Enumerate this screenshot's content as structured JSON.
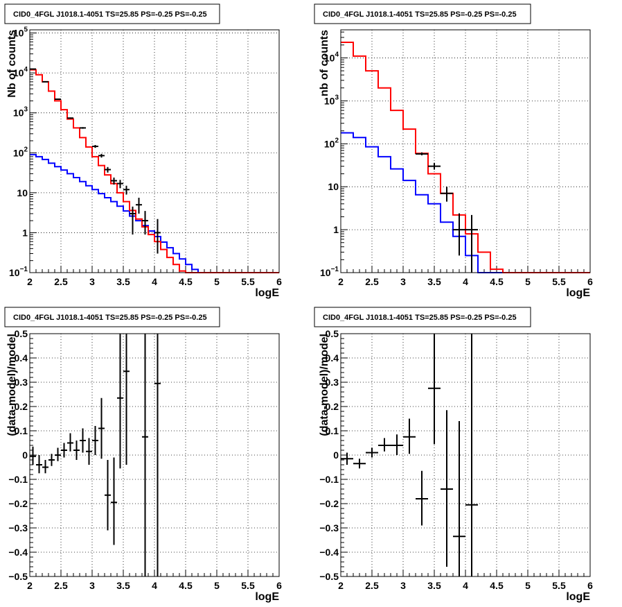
{
  "chart_data": [
    {
      "id": "p1",
      "type": "line",
      "title": "CID0_4FGL J1018.1-4051 TS=25.85 PS=-0.25 PS=-0.25",
      "xlabel": "logE",
      "ylabel": "Nb of counts",
      "xlim": [
        2,
        6
      ],
      "ylim": [
        0.1,
        120000
      ],
      "yscale": "log",
      "grid": true,
      "xticks": [
        {
          "v": 2,
          "label": "2"
        },
        {
          "v": 2.5,
          "label": "2.5"
        },
        {
          "v": 3,
          "label": "3"
        },
        {
          "v": 3.5,
          "label": "3.5"
        },
        {
          "v": 4,
          "label": "4"
        },
        {
          "v": 4.5,
          "label": "4.5"
        },
        {
          "v": 5,
          "label": "5"
        },
        {
          "v": 5.5,
          "label": "5.5"
        },
        {
          "v": 6,
          "label": "6"
        }
      ],
      "yticks": [
        {
          "v": 0.1,
          "base": "10",
          "exp": "−1"
        },
        {
          "v": 1,
          "label": "1"
        },
        {
          "v": 10,
          "label": "10"
        },
        {
          "v": 100,
          "base": "10",
          "exp": "2"
        },
        {
          "v": 1000,
          "base": "10",
          "exp": "3"
        },
        {
          "v": 10000,
          "base": "10",
          "exp": "4"
        },
        {
          "v": 100000,
          "base": "10",
          "exp": "5"
        }
      ],
      "series": [
        {
          "name": "",
          "kind": "step",
          "color": "#0000ff",
          "bin_width": 0.1,
          "x_start": 2.0,
          "values": [
            90,
            80,
            68,
            55,
            45,
            37,
            30,
            24,
            19,
            15,
            12,
            9.5,
            7.5,
            6,
            4.6,
            3.5,
            2.6,
            2,
            1.5,
            1.1,
            0.8,
            0.58,
            0.42,
            0.3,
            0.22,
            0.16,
            0.12,
            0.1,
            0.1,
            0.1,
            0.1,
            0.1,
            0.1,
            0.1,
            0.1,
            0.1,
            0.1,
            0.1,
            0.1,
            0.1
          ]
        },
        {
          "name": "",
          "kind": "step",
          "color": "#ff0000",
          "bin_width": 0.1,
          "x_start": 2.0,
          "values": [
            12000,
            9000,
            6000,
            3500,
            2000,
            1200,
            700,
            420,
            240,
            140,
            80,
            48,
            28,
            17,
            10,
            6,
            3.6,
            2.2,
            1.4,
            0.9,
            0.6,
            0.38,
            0.24,
            0.16,
            0.11,
            0.1,
            0.1,
            0.1,
            0.1,
            0.1,
            0.1,
            0.1,
            0.1,
            0.1,
            0.1,
            0.1,
            0.1,
            0.1,
            0.1,
            0.1
          ]
        },
        {
          "name": "",
          "kind": "errorbar",
          "color": "#000000",
          "xerr": 0.05,
          "points": [
            {
              "x": 2.05,
              "y": 12500,
              "lo": 12300,
              "hi": 12700
            },
            {
              "x": 2.25,
              "y": 6000,
              "lo": 5900,
              "hi": 6100
            },
            {
              "x": 2.45,
              "y": 2200,
              "lo": 2150,
              "hi": 2250
            },
            {
              "x": 2.65,
              "y": 740,
              "lo": 715,
              "hi": 765
            },
            {
              "x": 2.85,
              "y": 420,
              "lo": 400,
              "hi": 440
            },
            {
              "x": 3.05,
              "y": 145,
              "lo": 133,
              "hi": 157
            },
            {
              "x": 3.15,
              "y": 85,
              "lo": 76,
              "hi": 94
            },
            {
              "x": 3.25,
              "y": 38,
              "lo": 32,
              "hi": 44
            },
            {
              "x": 3.35,
              "y": 20,
              "lo": 16,
              "hi": 24
            },
            {
              "x": 3.45,
              "y": 17,
              "lo": 13,
              "hi": 21
            },
            {
              "x": 3.55,
              "y": 12,
              "lo": 9,
              "hi": 15
            },
            {
              "x": 3.65,
              "y": 3,
              "lo": 0.9,
              "hi": 4.5
            },
            {
              "x": 3.75,
              "y": 5,
              "lo": 3,
              "hi": 7.5
            },
            {
              "x": 3.85,
              "y": 2,
              "lo": 0.9,
              "hi": 3.5
            },
            {
              "x": 4.05,
              "y": 1,
              "lo": 0.3,
              "hi": 2.2
            }
          ]
        }
      ]
    },
    {
      "id": "p2",
      "type": "line",
      "title": "CID0_4FGL J1018.1-4051 TS=25.85 PS=-0.25 PS=-0.25",
      "xlabel": "logE",
      "ylabel": "nb of counts",
      "xlim": [
        2,
        6
      ],
      "ylim": [
        0.1,
        45000
      ],
      "yscale": "log",
      "grid": true,
      "xticks": [
        {
          "v": 2,
          "label": "2"
        },
        {
          "v": 2.5,
          "label": "2.5"
        },
        {
          "v": 3,
          "label": "3"
        },
        {
          "v": 3.5,
          "label": "3.5"
        },
        {
          "v": 4,
          "label": "4"
        },
        {
          "v": 4.5,
          "label": "4.5"
        },
        {
          "v": 5,
          "label": "5"
        },
        {
          "v": 5.5,
          "label": "5.5"
        },
        {
          "v": 6,
          "label": "6"
        }
      ],
      "yticks": [
        {
          "v": 0.1,
          "base": "10",
          "exp": "−1"
        },
        {
          "v": 1,
          "label": "1"
        },
        {
          "v": 10,
          "label": "10"
        },
        {
          "v": 100,
          "base": "10",
          "exp": "2"
        },
        {
          "v": 1000,
          "base": "10",
          "exp": "3"
        },
        {
          "v": 10000,
          "base": "10",
          "exp": "4"
        }
      ],
      "series": [
        {
          "name": "",
          "kind": "step",
          "color": "#0000ff",
          "bin_width": 0.2,
          "x_start": 2.0,
          "values": [
            180,
            140,
            85,
            50,
            26,
            14,
            6.5,
            4,
            1.5,
            0.7,
            0.25,
            0.1,
            0.1,
            0.1,
            0.1,
            0.1,
            0.1,
            0.1,
            0.1,
            0.1
          ]
        },
        {
          "name": "",
          "kind": "step",
          "color": "#ff0000",
          "bin_width": 0.2,
          "x_start": 2.0,
          "values": [
            23000,
            11000,
            5000,
            2000,
            600,
            220,
            60,
            20,
            7,
            2.2,
            0.8,
            0.3,
            0.12,
            0.1,
            0.1,
            0.1,
            0.1,
            0.1,
            0.1,
            0.1
          ]
        },
        {
          "name": "",
          "kind": "errorbar",
          "color": "#000000",
          "xerr": 0.1,
          "points": [
            {
              "x": 3.3,
              "y": 58,
              "lo": 54,
              "hi": 63
            },
            {
              "x": 3.5,
              "y": 30,
              "lo": 25,
              "hi": 36
            },
            {
              "x": 3.7,
              "y": 7,
              "lo": 4.5,
              "hi": 10
            },
            {
              "x": 3.9,
              "y": 1,
              "lo": 0.25,
              "hi": 2.4
            },
            {
              "x": 4.1,
              "y": 1,
              "lo": 0.1,
              "hi": 2.2
            }
          ]
        }
      ]
    },
    {
      "id": "p3",
      "type": "scatter",
      "title": "CID0_4FGL J1018.1-4051 TS=25.85 PS=-0.25 PS=-0.25",
      "xlabel": "logE",
      "ylabel": "(data-model)/model",
      "xlim": [
        2,
        6
      ],
      "ylim": [
        -0.5,
        0.5
      ],
      "yscale": "linear",
      "grid": true,
      "xticks": [
        {
          "v": 2,
          "label": "2"
        },
        {
          "v": 2.5,
          "label": "2.5"
        },
        {
          "v": 3,
          "label": "3"
        },
        {
          "v": 3.5,
          "label": "3.5"
        },
        {
          "v": 4,
          "label": "4"
        },
        {
          "v": 4.5,
          "label": "4.5"
        },
        {
          "v": 5,
          "label": "5"
        },
        {
          "v": 5.5,
          "label": "5.5"
        },
        {
          "v": 6,
          "label": "6"
        }
      ],
      "yticks": [
        {
          "v": -0.5,
          "label": "−0.5"
        },
        {
          "v": -0.4,
          "label": "−0.4"
        },
        {
          "v": -0.3,
          "label": "−0.3"
        },
        {
          "v": -0.2,
          "label": "−0.2"
        },
        {
          "v": -0.1,
          "label": "−0.1"
        },
        {
          "v": 0,
          "label": "0"
        },
        {
          "v": 0.1,
          "label": "0.1"
        },
        {
          "v": 0.2,
          "label": "0.2"
        },
        {
          "v": 0.3,
          "label": "0.3"
        },
        {
          "v": 0.4,
          "label": "0.4"
        },
        {
          "v": 0.5,
          "label": "0.5"
        }
      ],
      "series": [
        {
          "name": "",
          "kind": "errorbar",
          "color": "#000000",
          "xerr": 0.05,
          "points": [
            {
              "x": 2.05,
              "y": -0.005,
              "lo": -0.04,
              "hi": 0.035
            },
            {
              "x": 2.15,
              "y": -0.04,
              "lo": -0.075,
              "hi": 0.0
            },
            {
              "x": 2.25,
              "y": -0.05,
              "lo": -0.075,
              "hi": -0.02
            },
            {
              "x": 2.35,
              "y": -0.02,
              "lo": -0.045,
              "hi": 0.005
            },
            {
              "x": 2.45,
              "y": 0.0,
              "lo": -0.025,
              "hi": 0.03
            },
            {
              "x": 2.55,
              "y": 0.02,
              "lo": -0.01,
              "hi": 0.05
            },
            {
              "x": 2.65,
              "y": 0.05,
              "lo": 0.015,
              "hi": 0.09
            },
            {
              "x": 2.75,
              "y": 0.02,
              "lo": -0.02,
              "hi": 0.06
            },
            {
              "x": 2.85,
              "y": 0.06,
              "lo": 0.01,
              "hi": 0.11
            },
            {
              "x": 2.95,
              "y": 0.015,
              "lo": -0.04,
              "hi": 0.07
            },
            {
              "x": 3.05,
              "y": 0.06,
              "lo": 0.0,
              "hi": 0.12
            },
            {
              "x": 3.15,
              "y": 0.11,
              "lo": -0.015,
              "hi": 0.235
            },
            {
              "x": 3.25,
              "y": -0.165,
              "lo": -0.31,
              "hi": -0.02
            },
            {
              "x": 3.35,
              "y": -0.195,
              "lo": -0.37,
              "hi": -0.01
            },
            {
              "x": 3.45,
              "y": 0.235,
              "lo": -0.055,
              "hi": 0.5
            },
            {
              "x": 3.55,
              "y": 0.345,
              "lo": -0.04,
              "hi": 0.5
            },
            {
              "x": 3.85,
              "y": 0.075,
              "lo": -0.5,
              "hi": 0.5
            },
            {
              "x": 4.05,
              "y": 0.295,
              "lo": -0.5,
              "hi": 0.5
            }
          ]
        }
      ]
    },
    {
      "id": "p4",
      "type": "scatter",
      "title": "CID0_4FGL J1018.1-4051 TS=25.85 PS=-0.25 PS=-0.25",
      "xlabel": "logE",
      "ylabel": "(data-model)/model",
      "xlim": [
        2,
        6
      ],
      "ylim": [
        -0.5,
        0.5
      ],
      "yscale": "linear",
      "grid": true,
      "xticks": [
        {
          "v": 2,
          "label": "2"
        },
        {
          "v": 2.5,
          "label": "2.5"
        },
        {
          "v": 3,
          "label": "3"
        },
        {
          "v": 3.5,
          "label": "3.5"
        },
        {
          "v": 4,
          "label": "4"
        },
        {
          "v": 4.5,
          "label": "4.5"
        },
        {
          "v": 5,
          "label": "5"
        },
        {
          "v": 5.5,
          "label": "5.5"
        },
        {
          "v": 6,
          "label": "6"
        }
      ],
      "yticks": [
        {
          "v": -0.5,
          "label": "−0.5"
        },
        {
          "v": -0.4,
          "label": "−0.4"
        },
        {
          "v": -0.3,
          "label": "−0.3"
        },
        {
          "v": -0.2,
          "label": "−0.2"
        },
        {
          "v": -0.1,
          "label": "−0.1"
        },
        {
          "v": 0,
          "label": "0"
        },
        {
          "v": 0.1,
          "label": "0.1"
        },
        {
          "v": 0.2,
          "label": "0.2"
        },
        {
          "v": 0.3,
          "label": "0.3"
        },
        {
          "v": 0.4,
          "label": "0.4"
        },
        {
          "v": 0.5,
          "label": "0.5"
        }
      ],
      "series": [
        {
          "name": "",
          "kind": "errorbar",
          "color": "#000000",
          "xerr": 0.1,
          "points": [
            {
              "x": 2.1,
              "y": -0.015,
              "lo": -0.04,
              "hi": 0.01
            },
            {
              "x": 2.3,
              "y": -0.035,
              "lo": -0.055,
              "hi": -0.015
            },
            {
              "x": 2.5,
              "y": 0.01,
              "lo": -0.01,
              "hi": 0.03
            },
            {
              "x": 2.7,
              "y": 0.04,
              "lo": 0.015,
              "hi": 0.07
            },
            {
              "x": 2.9,
              "y": 0.04,
              "lo": 0.0,
              "hi": 0.085
            },
            {
              "x": 3.1,
              "y": 0.075,
              "lo": 0.005,
              "hi": 0.15
            },
            {
              "x": 3.3,
              "y": -0.18,
              "lo": -0.29,
              "hi": -0.065
            },
            {
              "x": 3.5,
              "y": 0.275,
              "lo": 0.045,
              "hi": 0.5
            },
            {
              "x": 3.7,
              "y": -0.14,
              "lo": -0.46,
              "hi": 0.185
            },
            {
              "x": 3.9,
              "y": -0.335,
              "lo": -0.5,
              "hi": 0.14
            },
            {
              "x": 4.1,
              "y": -0.205,
              "lo": -0.5,
              "hi": 0.5
            }
          ]
        }
      ]
    }
  ]
}
